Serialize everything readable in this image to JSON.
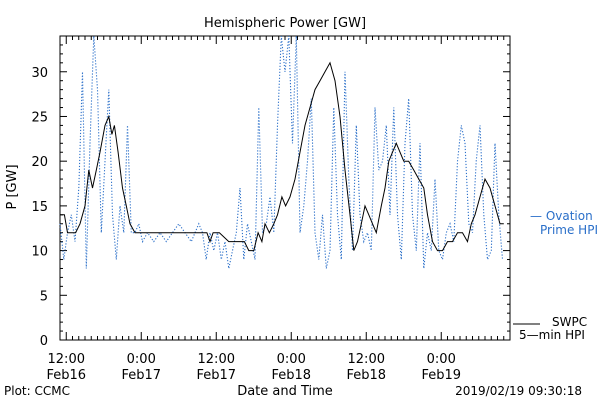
{
  "chart_data": {
    "type": "line",
    "title": "Hemispheric Power [GW]",
    "xlabel": "Date and Time",
    "ylabel": "P [GW]",
    "ylim": [
      0,
      34
    ],
    "yticks": [
      0,
      5,
      10,
      15,
      20,
      25,
      30
    ],
    "xlim_hours": [
      0,
      72
    ],
    "xticks": [
      {
        "hour": 1,
        "time": "12:00",
        "date": "Feb16"
      },
      {
        "hour": 13,
        "time": "0:00",
        "date": "Feb17"
      },
      {
        "hour": 25,
        "time": "12:00",
        "date": "Feb17"
      },
      {
        "hour": 37,
        "time": "0:00",
        "date": "Feb18"
      },
      {
        "hour": 49,
        "time": "12:00",
        "date": "Feb18"
      },
      {
        "hour": 61,
        "time": "0:00",
        "date": "Feb19"
      }
    ],
    "grid": false,
    "series": [
      {
        "name": "SWPC 5-min HPI",
        "label_lines": [
          "SWPC",
          "5—min HPI"
        ],
        "color": "#000000",
        "style": "solid",
        "points": [
          [
            0,
            14
          ],
          [
            0.7,
            14
          ],
          [
            1.2,
            12
          ],
          [
            2.5,
            12
          ],
          [
            3.2,
            13
          ],
          [
            4,
            15
          ],
          [
            4.6,
            19
          ],
          [
            5.2,
            17
          ],
          [
            5.8,
            19
          ],
          [
            6.4,
            21
          ],
          [
            7.2,
            24
          ],
          [
            7.8,
            25
          ],
          [
            8.3,
            23
          ],
          [
            8.7,
            24
          ],
          [
            9.3,
            21
          ],
          [
            10,
            17
          ],
          [
            10.6,
            15
          ],
          [
            11.2,
            13
          ],
          [
            12,
            12
          ],
          [
            15,
            12
          ],
          [
            21,
            12
          ],
          [
            23.5,
            12
          ],
          [
            24,
            11
          ],
          [
            24.5,
            12
          ],
          [
            25.5,
            12
          ],
          [
            27,
            11
          ],
          [
            29.5,
            11
          ],
          [
            30.2,
            10
          ],
          [
            31,
            10
          ],
          [
            31.7,
            12
          ],
          [
            32.3,
            11
          ],
          [
            32.8,
            13
          ],
          [
            33.5,
            12
          ],
          [
            34.2,
            13
          ],
          [
            34.8,
            14
          ],
          [
            35.5,
            16
          ],
          [
            36.1,
            15
          ],
          [
            36.8,
            16
          ],
          [
            37.6,
            18
          ],
          [
            38.4,
            21
          ],
          [
            39.2,
            24
          ],
          [
            40,
            26
          ],
          [
            40.8,
            28
          ],
          [
            41.6,
            29
          ],
          [
            42.4,
            30
          ],
          [
            43.2,
            31
          ],
          [
            44,
            29
          ],
          [
            44.8,
            25
          ],
          [
            45.6,
            19
          ],
          [
            46.4,
            14
          ],
          [
            47,
            10
          ],
          [
            47.6,
            11
          ],
          [
            48.2,
            13
          ],
          [
            48.8,
            15
          ],
          [
            49.4,
            14
          ],
          [
            50,
            13
          ],
          [
            50.6,
            12
          ],
          [
            51.4,
            15
          ],
          [
            52,
            17
          ],
          [
            52.6,
            20
          ],
          [
            53.2,
            21
          ],
          [
            53.8,
            22
          ],
          [
            54.4,
            21
          ],
          [
            55,
            20
          ],
          [
            55.8,
            20
          ],
          [
            56.6,
            19
          ],
          [
            57.4,
            18
          ],
          [
            58.2,
            17
          ],
          [
            58.8,
            14
          ],
          [
            59.6,
            11
          ],
          [
            60.4,
            10
          ],
          [
            61.2,
            10
          ],
          [
            62,
            11
          ],
          [
            62.8,
            11
          ],
          [
            63.6,
            12
          ],
          [
            64.4,
            12
          ],
          [
            65.2,
            11
          ],
          [
            65.8,
            13
          ],
          [
            66.4,
            14
          ],
          [
            67.2,
            16
          ],
          [
            68,
            18
          ],
          [
            68.8,
            17
          ],
          [
            69.6,
            15
          ],
          [
            70.4,
            13
          ],
          [
            71,
            13
          ]
        ]
      },
      {
        "name": "Ovation Prime HPI",
        "label_lines": [
          "— Ovation",
          "Prime HPI"
        ],
        "color": "#2a6fc9",
        "style": "dotted",
        "points": [
          [
            0,
            13
          ],
          [
            0.6,
            9
          ],
          [
            1.2,
            12
          ],
          [
            1.8,
            14
          ],
          [
            2.4,
            11
          ],
          [
            3,
            17
          ],
          [
            3.6,
            30
          ],
          [
            4.2,
            8
          ],
          [
            4.8,
            22
          ],
          [
            5.4,
            34
          ],
          [
            6,
            28
          ],
          [
            6.6,
            12
          ],
          [
            7.2,
            20
          ],
          [
            7.8,
            28
          ],
          [
            8.4,
            14
          ],
          [
            9,
            9
          ],
          [
            9.6,
            15
          ],
          [
            10.2,
            12
          ],
          [
            10.8,
            24
          ],
          [
            11.4,
            12
          ],
          [
            12,
            12
          ],
          [
            12.6,
            13
          ],
          [
            13.2,
            11
          ],
          [
            14,
            12
          ],
          [
            15,
            11
          ],
          [
            16,
            12
          ],
          [
            17,
            11
          ],
          [
            18,
            12
          ],
          [
            19,
            13
          ],
          [
            20,
            12
          ],
          [
            21,
            11
          ],
          [
            21.6,
            12
          ],
          [
            22.2,
            13
          ],
          [
            22.8,
            12
          ],
          [
            23.4,
            9
          ],
          [
            24,
            12
          ],
          [
            24.6,
            10
          ],
          [
            25.2,
            12
          ],
          [
            25.8,
            9
          ],
          [
            26.4,
            11
          ],
          [
            27,
            8
          ],
          [
            27.6,
            10
          ],
          [
            28.2,
            12
          ],
          [
            28.8,
            17
          ],
          [
            29.4,
            9
          ],
          [
            30,
            13
          ],
          [
            30.6,
            11
          ],
          [
            31.2,
            9
          ],
          [
            31.8,
            26
          ],
          [
            32.4,
            12
          ],
          [
            33,
            13
          ],
          [
            33.6,
            16
          ],
          [
            34.2,
            12
          ],
          [
            34.8,
            24
          ],
          [
            35.4,
            34
          ],
          [
            36,
            30
          ],
          [
            36.6,
            34
          ],
          [
            37.2,
            22
          ],
          [
            37.8,
            34
          ],
          [
            38.4,
            12
          ],
          [
            39,
            15
          ],
          [
            39.6,
            20
          ],
          [
            40.2,
            27
          ],
          [
            40.8,
            12
          ],
          [
            41.4,
            9
          ],
          [
            42,
            14
          ],
          [
            42.6,
            8
          ],
          [
            43.2,
            10
          ],
          [
            43.8,
            26
          ],
          [
            44.4,
            14
          ],
          [
            45,
            9
          ],
          [
            45.6,
            30
          ],
          [
            46.2,
            18
          ],
          [
            46.8,
            10
          ],
          [
            47.4,
            24
          ],
          [
            48,
            14
          ],
          [
            48.6,
            11
          ],
          [
            49.2,
            12
          ],
          [
            49.8,
            10
          ],
          [
            50.4,
            26
          ],
          [
            51,
            19
          ],
          [
            51.6,
            20
          ],
          [
            52.2,
            24
          ],
          [
            52.8,
            14
          ],
          [
            53.4,
            26
          ],
          [
            54,
            14
          ],
          [
            54.6,
            9
          ],
          [
            55.2,
            22
          ],
          [
            55.8,
            27
          ],
          [
            56.4,
            14
          ],
          [
            57,
            10
          ],
          [
            57.6,
            22
          ],
          [
            58.2,
            8
          ],
          [
            58.8,
            12
          ],
          [
            59.4,
            10
          ],
          [
            60,
            18
          ],
          [
            60.6,
            10
          ],
          [
            61.2,
            9
          ],
          [
            61.8,
            12
          ],
          [
            62.4,
            13
          ],
          [
            63,
            11
          ],
          [
            63.6,
            20
          ],
          [
            64.2,
            24
          ],
          [
            64.8,
            22
          ],
          [
            65.4,
            13
          ],
          [
            66,
            12
          ],
          [
            66.6,
            20
          ],
          [
            67.2,
            24
          ],
          [
            67.8,
            14
          ],
          [
            68.4,
            9
          ],
          [
            69,
            10
          ],
          [
            69.6,
            22
          ],
          [
            70.2,
            14
          ],
          [
            70.8,
            9
          ]
        ]
      }
    ]
  },
  "footer": {
    "plot_credit": "Plot: CCMC",
    "timestamp": "2019/02/19 09:30:18"
  }
}
